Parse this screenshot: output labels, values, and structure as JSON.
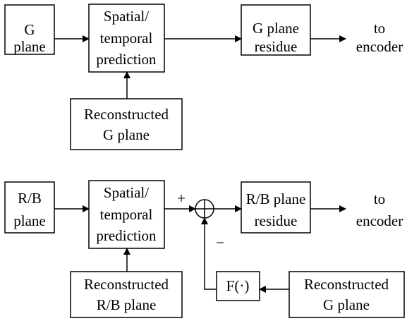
{
  "top": {
    "g_plane": {
      "lines": [
        "G",
        "plane"
      ]
    },
    "prediction": {
      "lines": [
        "Spatial/",
        "temporal",
        "prediction"
      ]
    },
    "residue": {
      "lines": [
        "G plane",
        "residue"
      ]
    },
    "output": {
      "lines": [
        "to",
        "encoder"
      ]
    },
    "reconstructed": {
      "lines": [
        "Reconstructed",
        "G plane"
      ]
    }
  },
  "bottom": {
    "rb_plane": {
      "lines": [
        "R/B",
        "plane"
      ]
    },
    "prediction": {
      "lines": [
        "Spatial/",
        "temporal",
        "prediction"
      ]
    },
    "residue": {
      "lines": [
        "R/B plane",
        "residue"
      ]
    },
    "output": {
      "lines": [
        "to",
        "encoder"
      ]
    },
    "reconstructed_rb": {
      "lines": [
        "Reconstructed",
        "R/B plane"
      ]
    },
    "function": {
      "lines": [
        "F(·)"
      ]
    },
    "reconstructed_g": {
      "lines": [
        "Reconstructed",
        "G plane"
      ]
    },
    "plus_sign": "+",
    "minus_sign": "−"
  }
}
